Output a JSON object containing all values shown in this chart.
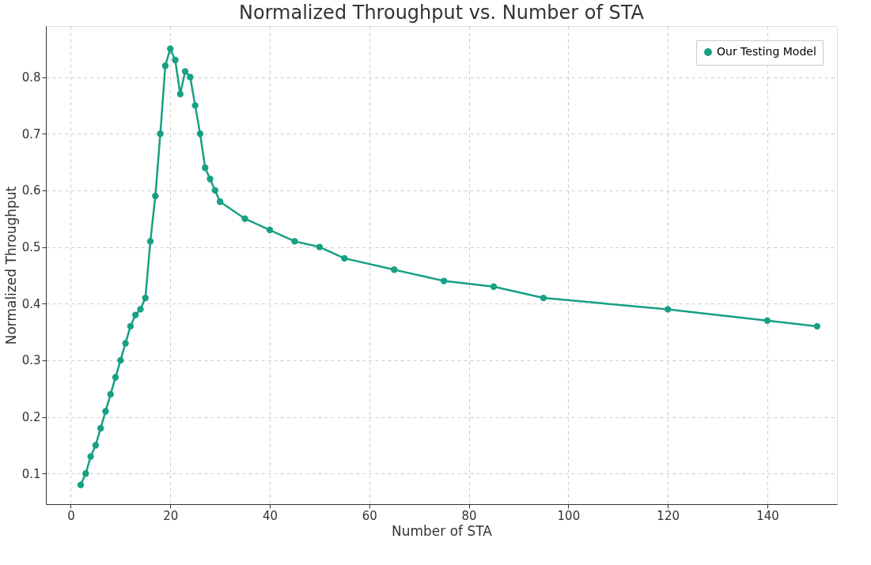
{
  "chart_data": {
    "type": "line",
    "title": "Normalized Throughput vs. Number of STA",
    "xlabel": "Number of STA",
    "ylabel": "Normalized Throughput",
    "x": [
      2,
      3,
      4,
      5,
      6,
      7,
      8,
      9,
      10,
      11,
      12,
      13,
      14,
      15,
      16,
      17,
      18,
      19,
      20,
      21,
      22,
      23,
      24,
      25,
      26,
      27,
      28,
      29,
      30,
      35,
      40,
      45,
      50,
      55,
      65,
      75,
      85,
      95,
      120,
      140,
      150
    ],
    "series": [
      {
        "name": "Our Testing Model",
        "color": "#16a084",
        "values": [
          0.08,
          0.1,
          0.13,
          0.15,
          0.18,
          0.21,
          0.24,
          0.27,
          0.3,
          0.33,
          0.36,
          0.38,
          0.39,
          0.41,
          0.51,
          0.59,
          0.7,
          0.82,
          0.85,
          0.83,
          0.77,
          0.81,
          0.8,
          0.75,
          0.7,
          0.64,
          0.62,
          0.6,
          0.58,
          0.55,
          0.53,
          0.51,
          0.5,
          0.48,
          0.46,
          0.44,
          0.43,
          0.41,
          0.39,
          0.37,
          0.36
        ]
      }
    ],
    "xlim": [
      -5,
      154
    ],
    "ylim": [
      0.046,
      0.89
    ],
    "xticks": [
      0,
      20,
      40,
      60,
      80,
      100,
      120,
      140
    ],
    "yticks": [
      0.1,
      0.2,
      0.3,
      0.4,
      0.5,
      0.6,
      0.7,
      0.8
    ],
    "grid": true,
    "legend": "top right",
    "marker": "circle",
    "line_style": "solid"
  }
}
